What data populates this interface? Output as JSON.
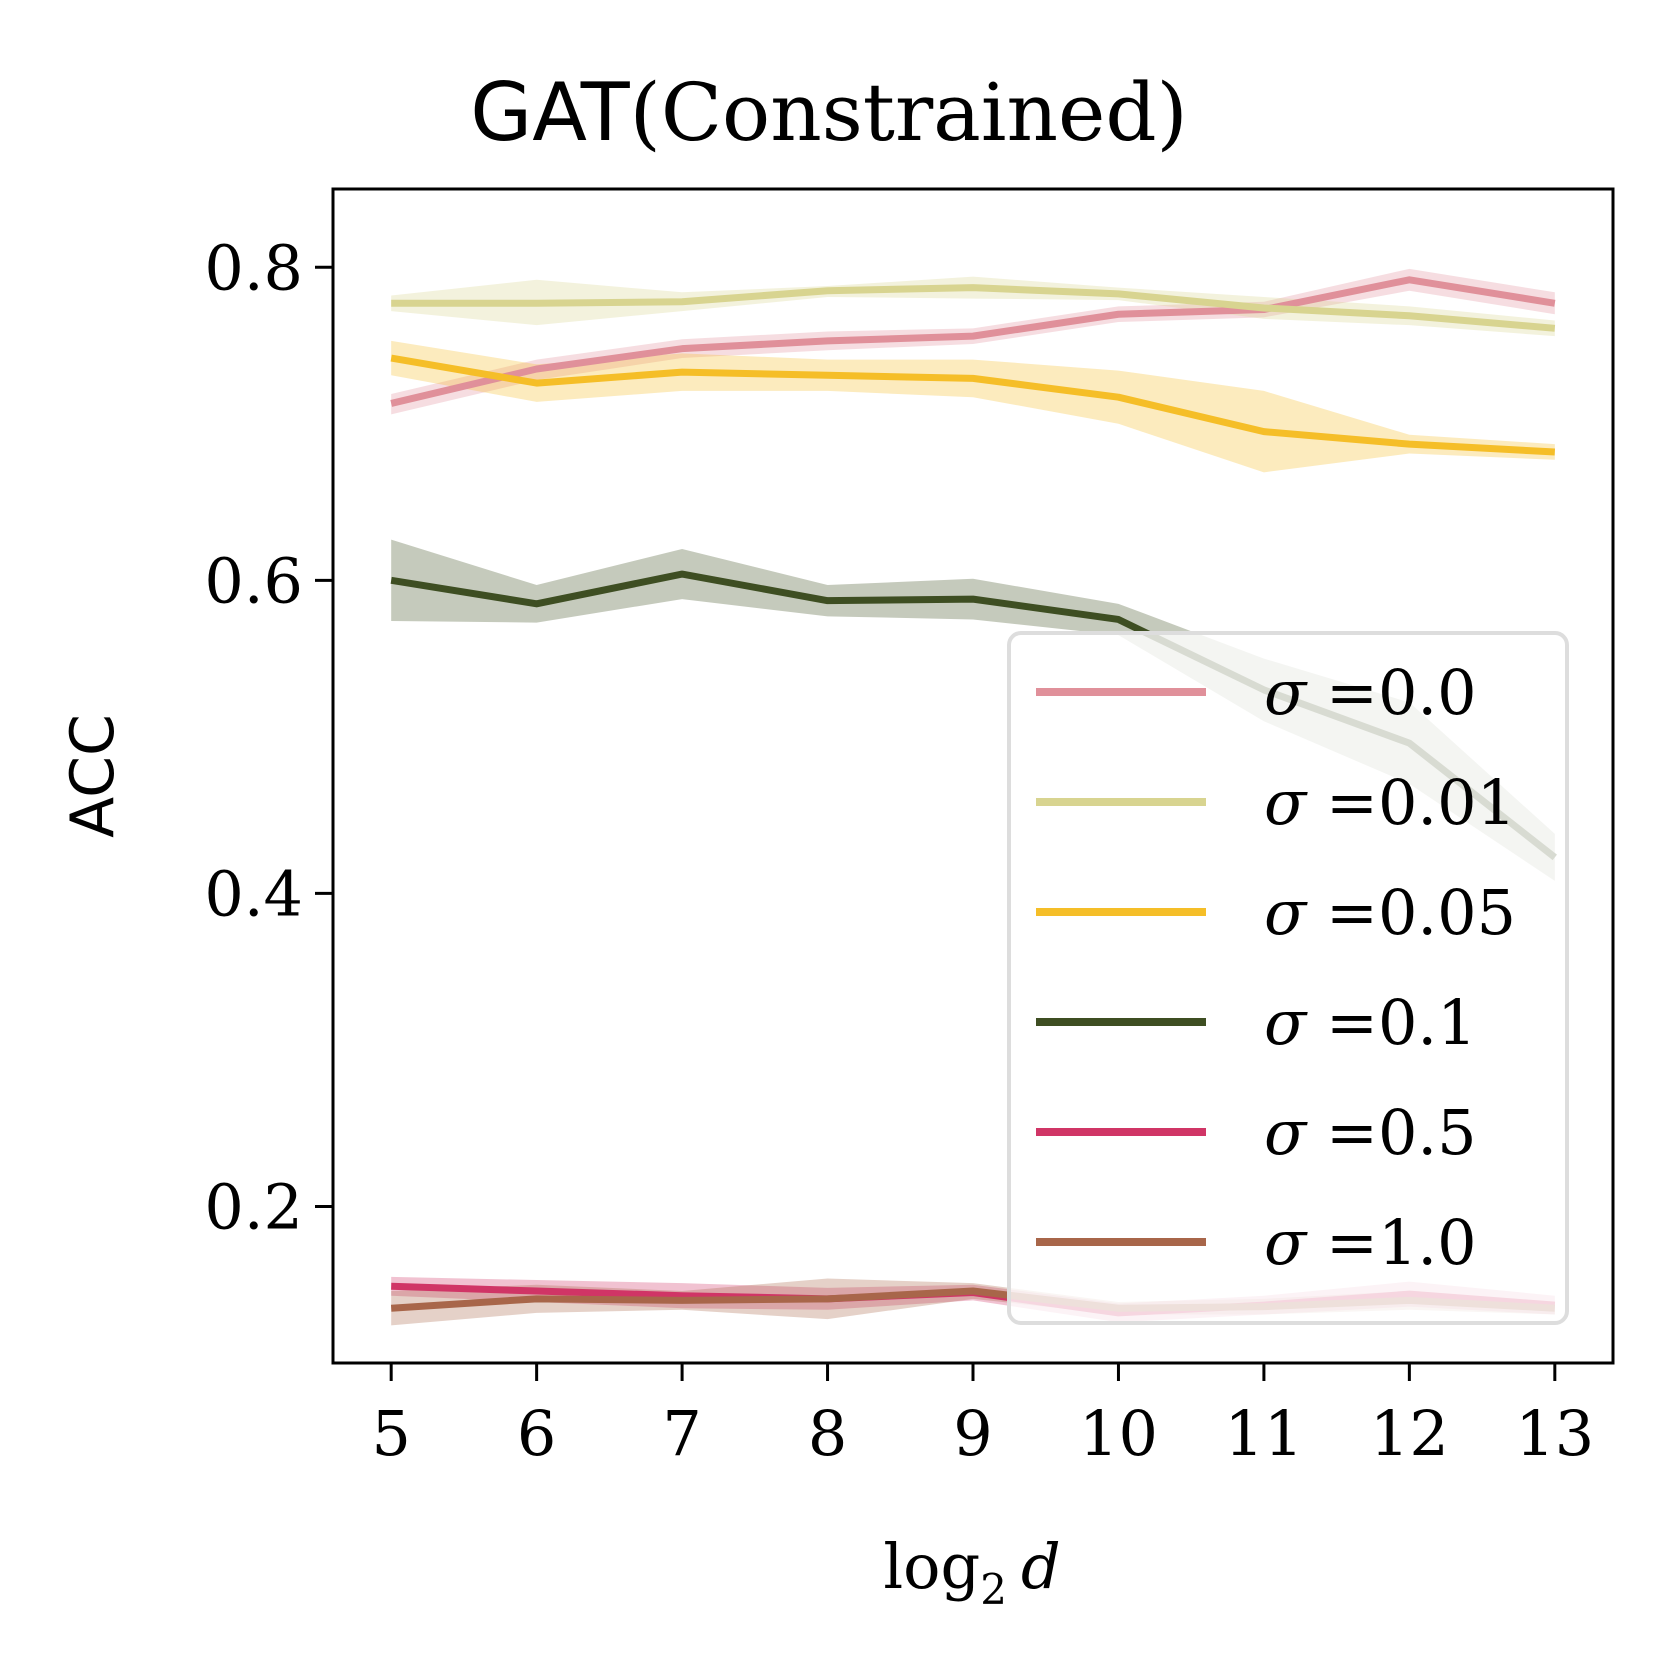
{
  "chart_data": {
    "type": "line",
    "title": {
      "prefix": "GAT",
      "suffix": "(Constrained)"
    },
    "xlabel": {
      "base": "log",
      "subscript": "2",
      "var": "d"
    },
    "ylabel": "ACC",
    "x": [
      5,
      6,
      7,
      8,
      9,
      10,
      11,
      12,
      13
    ],
    "xlim": [
      4.6,
      13.4
    ],
    "ylim": [
      0.1,
      0.85
    ],
    "xticks": [
      5,
      6,
      7,
      8,
      9,
      10,
      11,
      12,
      13
    ],
    "yticks": [
      0.2,
      0.4,
      0.6,
      0.8
    ],
    "ytick_labels": [
      "0.2",
      "0.4",
      "0.6",
      "0.8"
    ],
    "legend_position": "lower-right",
    "series": [
      {
        "name": "σ =0.0",
        "symbol": "σ",
        "value": "0.0",
        "color": "#e0909a",
        "values": [
          0.713,
          0.735,
          0.748,
          0.753,
          0.756,
          0.77,
          0.773,
          0.792,
          0.777
        ],
        "lower": [
          0.706,
          0.728,
          0.742,
          0.747,
          0.751,
          0.765,
          0.768,
          0.785,
          0.77
        ],
        "upper": [
          0.719,
          0.741,
          0.754,
          0.759,
          0.761,
          0.775,
          0.778,
          0.799,
          0.784
        ]
      },
      {
        "name": "σ =0.01",
        "symbol": "σ",
        "value": "0.01",
        "color": "#d8d490",
        "values": [
          0.777,
          0.777,
          0.778,
          0.785,
          0.787,
          0.783,
          0.774,
          0.769,
          0.761
        ],
        "lower": [
          0.772,
          0.763,
          0.772,
          0.781,
          0.78,
          0.779,
          0.767,
          0.763,
          0.756
        ],
        "upper": [
          0.782,
          0.792,
          0.784,
          0.788,
          0.794,
          0.787,
          0.781,
          0.775,
          0.766
        ]
      },
      {
        "name": "σ =0.05",
        "symbol": "σ",
        "value": "0.05",
        "color": "#f5be28",
        "values": [
          0.742,
          0.726,
          0.733,
          0.731,
          0.729,
          0.717,
          0.695,
          0.687,
          0.682
        ],
        "lower": [
          0.731,
          0.714,
          0.721,
          0.721,
          0.717,
          0.7,
          0.669,
          0.681,
          0.677
        ],
        "upper": [
          0.753,
          0.738,
          0.745,
          0.741,
          0.741,
          0.734,
          0.721,
          0.693,
          0.687
        ]
      },
      {
        "name": "σ =0.1",
        "symbol": "σ",
        "value": "0.1",
        "color": "#3e4e22",
        "values": [
          0.6,
          0.585,
          0.604,
          0.587,
          0.588,
          0.575,
          0.53,
          0.496,
          0.423
        ],
        "lower": [
          0.574,
          0.573,
          0.588,
          0.577,
          0.575,
          0.565,
          0.51,
          0.47,
          0.408
        ],
        "upper": [
          0.626,
          0.597,
          0.62,
          0.597,
          0.601,
          0.585,
          0.55,
          0.522,
          0.438
        ]
      },
      {
        "name": "σ =0.5",
        "symbol": "σ",
        "value": "0.5",
        "color": "#d03566",
        "values": [
          0.149,
          0.146,
          0.143,
          0.141,
          0.145,
          0.132,
          0.137,
          0.144,
          0.137
        ],
        "lower": [
          0.143,
          0.139,
          0.135,
          0.134,
          0.14,
          0.126,
          0.131,
          0.136,
          0.131
        ],
        "upper": [
          0.155,
          0.153,
          0.151,
          0.148,
          0.15,
          0.138,
          0.143,
          0.152,
          0.143
        ]
      },
      {
        "name": "σ =1.0",
        "symbol": "σ",
        "value": "1.0",
        "color": "#a8664a",
        "values": [
          0.135,
          0.141,
          0.14,
          0.141,
          0.146,
          0.135,
          0.136,
          0.14,
          0.135
        ],
        "lower": [
          0.124,
          0.132,
          0.134,
          0.128,
          0.141,
          0.131,
          0.131,
          0.134,
          0.131
        ],
        "upper": [
          0.146,
          0.15,
          0.146,
          0.154,
          0.151,
          0.139,
          0.141,
          0.146,
          0.139
        ]
      }
    ]
  }
}
